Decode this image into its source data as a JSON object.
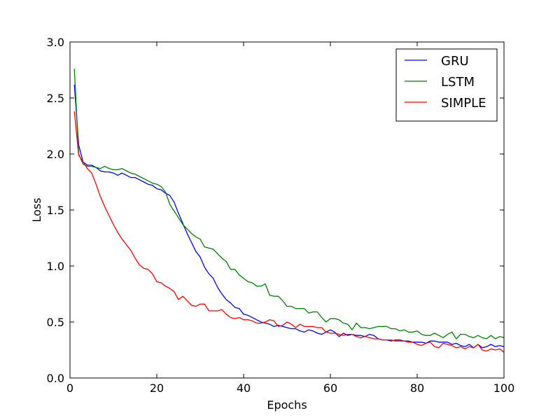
{
  "chart_data": {
    "type": "line",
    "title": "",
    "xlabel": "Epochs",
    "ylabel": "Loss",
    "xlim": [
      0,
      100
    ],
    "ylim": [
      0.0,
      3.0
    ],
    "xticks": [
      0,
      20,
      40,
      60,
      80,
      100
    ],
    "yticks": [
      0.0,
      0.5,
      1.0,
      1.5,
      2.0,
      2.5,
      3.0
    ],
    "xtick_labels": [
      "0",
      "20",
      "40",
      "60",
      "80",
      "100"
    ],
    "ytick_labels": [
      "0.0",
      "0.5",
      "1.0",
      "1.5",
      "2.0",
      "2.5",
      "3.0"
    ],
    "grid": false,
    "legend_position": "top-right",
    "x": [
      1,
      2,
      3,
      4,
      5,
      6,
      7,
      8,
      9,
      10,
      11,
      12,
      13,
      14,
      15,
      16,
      17,
      18,
      19,
      20,
      21,
      22,
      23,
      24,
      25,
      26,
      27,
      28,
      29,
      30,
      31,
      32,
      33,
      34,
      35,
      36,
      37,
      38,
      39,
      40,
      41,
      42,
      43,
      44,
      45,
      46,
      47,
      48,
      49,
      50,
      51,
      52,
      53,
      54,
      55,
      56,
      57,
      58,
      59,
      60,
      61,
      62,
      63,
      64,
      65,
      66,
      67,
      68,
      69,
      70,
      71,
      72,
      73,
      74,
      75,
      76,
      77,
      78,
      79,
      80,
      81,
      82,
      83,
      84,
      85,
      86,
      87,
      88,
      89,
      90,
      91,
      92,
      93,
      94,
      95,
      96,
      97,
      98,
      99,
      100
    ],
    "series": [
      {
        "name": "GRU",
        "color": "#0000ff",
        "values": [
          2.62,
          2.08,
          1.93,
          1.9,
          1.9,
          1.88,
          1.85,
          1.84,
          1.84,
          1.83,
          1.81,
          1.83,
          1.81,
          1.79,
          1.79,
          1.77,
          1.75,
          1.73,
          1.72,
          1.69,
          1.68,
          1.65,
          1.63,
          1.57,
          1.47,
          1.38,
          1.29,
          1.21,
          1.13,
          1.08,
          0.99,
          0.93,
          0.89,
          0.81,
          0.75,
          0.7,
          0.67,
          0.63,
          0.62,
          0.57,
          0.56,
          0.54,
          0.52,
          0.5,
          0.49,
          0.48,
          0.46,
          0.47,
          0.46,
          0.45,
          0.44,
          0.44,
          0.42,
          0.41,
          0.43,
          0.42,
          0.4,
          0.39,
          0.41,
          0.43,
          0.41,
          0.37,
          0.4,
          0.38,
          0.39,
          0.38,
          0.38,
          0.37,
          0.39,
          0.38,
          0.35,
          0.34,
          0.34,
          0.33,
          0.34,
          0.34,
          0.33,
          0.33,
          0.32,
          0.32,
          0.32,
          0.31,
          0.33,
          0.33,
          0.32,
          0.32,
          0.32,
          0.3,
          0.31,
          0.29,
          0.28,
          0.3,
          0.27,
          0.3,
          0.27,
          0.28,
          0.3,
          0.28,
          0.29,
          0.28
        ]
      },
      {
        "name": "LSTM",
        "color": "#008000",
        "values": [
          2.76,
          2.0,
          1.91,
          1.89,
          1.89,
          1.88,
          1.87,
          1.89,
          1.87,
          1.86,
          1.86,
          1.87,
          1.85,
          1.83,
          1.82,
          1.8,
          1.78,
          1.76,
          1.74,
          1.73,
          1.71,
          1.66,
          1.55,
          1.49,
          1.43,
          1.37,
          1.33,
          1.29,
          1.26,
          1.24,
          1.17,
          1.16,
          1.15,
          1.11,
          1.07,
          1.04,
          0.97,
          0.97,
          0.92,
          0.89,
          0.86,
          0.85,
          0.82,
          0.82,
          0.84,
          0.74,
          0.73,
          0.73,
          0.69,
          0.64,
          0.64,
          0.62,
          0.62,
          0.62,
          0.58,
          0.59,
          0.59,
          0.54,
          0.5,
          0.53,
          0.53,
          0.52,
          0.49,
          0.48,
          0.43,
          0.49,
          0.45,
          0.45,
          0.44,
          0.45,
          0.46,
          0.46,
          0.46,
          0.44,
          0.44,
          0.42,
          0.43,
          0.41,
          0.41,
          0.42,
          0.39,
          0.38,
          0.38,
          0.4,
          0.38,
          0.36,
          0.39,
          0.41,
          0.35,
          0.39,
          0.39,
          0.37,
          0.36,
          0.38,
          0.36,
          0.35,
          0.38,
          0.35,
          0.37,
          0.36
        ]
      },
      {
        "name": "SIMPLE",
        "color": "#ff0000",
        "values": [
          2.38,
          1.99,
          1.93,
          1.87,
          1.83,
          1.73,
          1.62,
          1.53,
          1.45,
          1.37,
          1.3,
          1.24,
          1.19,
          1.14,
          1.07,
          1.01,
          0.98,
          0.97,
          0.93,
          0.86,
          0.85,
          0.82,
          0.8,
          0.77,
          0.7,
          0.73,
          0.69,
          0.65,
          0.64,
          0.66,
          0.66,
          0.6,
          0.6,
          0.6,
          0.61,
          0.57,
          0.54,
          0.53,
          0.54,
          0.52,
          0.52,
          0.51,
          0.49,
          0.49,
          0.5,
          0.52,
          0.51,
          0.46,
          0.47,
          0.5,
          0.48,
          0.45,
          0.48,
          0.46,
          0.46,
          0.46,
          0.45,
          0.45,
          0.41,
          0.4,
          0.4,
          0.39,
          0.38,
          0.39,
          0.39,
          0.37,
          0.36,
          0.37,
          0.36,
          0.35,
          0.35,
          0.34,
          0.34,
          0.34,
          0.33,
          0.33,
          0.33,
          0.32,
          0.32,
          0.3,
          0.29,
          0.31,
          0.32,
          0.28,
          0.27,
          0.31,
          0.3,
          0.29,
          0.27,
          0.28,
          0.26,
          0.28,
          0.27,
          0.3,
          0.25,
          0.24,
          0.26,
          0.25,
          0.26,
          0.23
        ]
      }
    ]
  }
}
